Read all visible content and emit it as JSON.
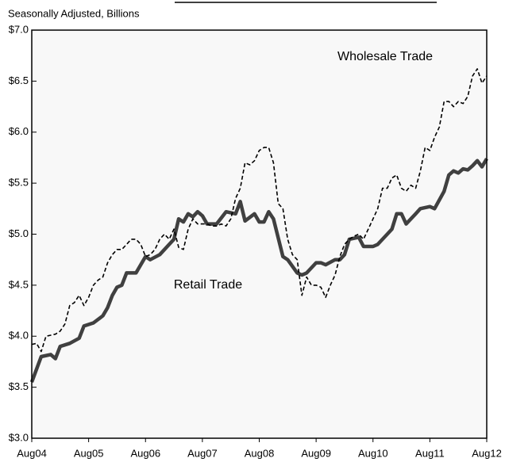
{
  "chart_data": {
    "type": "line",
    "subtitle": "Seasonally Adjusted, Billions",
    "annotations": [
      "Wholesale Trade",
      "Retail Trade"
    ],
    "xlim": [
      0,
      96
    ],
    "xticks": [
      {
        "value": 0,
        "label": "Aug04"
      },
      {
        "value": 12,
        "label": "Aug05"
      },
      {
        "value": 24,
        "label": "Aug06"
      },
      {
        "value": 36,
        "label": "Aug07"
      },
      {
        "value": 48,
        "label": "Aug08"
      },
      {
        "value": 60,
        "label": "Aug09"
      },
      {
        "value": 72,
        "label": "Aug10"
      },
      {
        "value": 84,
        "label": "Aug11"
      },
      {
        "value": 96,
        "label": "Aug12"
      }
    ],
    "ylim": [
      3.0,
      7.0
    ],
    "yticks": [
      {
        "value": 3.0,
        "label": "$3.0"
      },
      {
        "value": 3.5,
        "label": "$3.5"
      },
      {
        "value": 4.0,
        "label": "$4.0"
      },
      {
        "value": 4.5,
        "label": "$4.5"
      },
      {
        "value": 5.0,
        "label": "$5.0"
      },
      {
        "value": 5.5,
        "label": "$5.5"
      },
      {
        "value": 6.0,
        "label": "$6.0"
      },
      {
        "value": 6.5,
        "label": "$6.5"
      },
      {
        "value": 7.0,
        "label": "$7.0"
      }
    ],
    "grid": false,
    "series": [
      {
        "name": "Retail Trade",
        "color": "#404040",
        "style": "solid",
        "x": [
          0,
          2,
          4,
          5,
          6,
          8,
          10,
          11,
          13,
          15,
          16,
          17,
          18,
          19,
          20,
          22,
          24,
          25,
          27,
          29,
          30,
          31,
          32,
          33,
          34,
          35,
          36,
          37,
          39,
          41,
          43,
          44,
          45,
          47,
          48,
          49,
          50,
          51,
          53,
          54,
          56,
          57,
          58,
          60,
          61,
          62,
          64,
          65,
          66,
          67,
          69,
          70,
          72,
          73,
          75,
          76,
          77,
          78,
          79,
          80,
          81,
          82,
          84,
          85,
          87,
          88,
          89,
          90,
          91,
          92,
          93,
          94,
          95,
          96
        ],
        "values": [
          3.55,
          3.8,
          3.82,
          3.78,
          3.9,
          3.93,
          3.98,
          4.1,
          4.13,
          4.2,
          4.28,
          4.4,
          4.48,
          4.5,
          4.62,
          4.62,
          4.78,
          4.75,
          4.8,
          4.9,
          4.95,
          5.15,
          5.12,
          5.2,
          5.17,
          5.22,
          5.18,
          5.1,
          5.1,
          5.22,
          5.2,
          5.32,
          5.13,
          5.2,
          5.12,
          5.12,
          5.22,
          5.15,
          4.78,
          4.75,
          4.62,
          4.6,
          4.62,
          4.72,
          4.72,
          4.7,
          4.75,
          4.75,
          4.8,
          4.95,
          4.97,
          4.88,
          4.88,
          4.9,
          5.0,
          5.05,
          5.2,
          5.2,
          5.1,
          5.15,
          5.2,
          5.25,
          5.27,
          5.25,
          5.42,
          5.58,
          5.62,
          5.6,
          5.64,
          5.63,
          5.67,
          5.72,
          5.66,
          5.74
        ]
      },
      {
        "name": "Wholesale Trade",
        "color": "#000000",
        "style": "dashed",
        "x": [
          0,
          1,
          2,
          3,
          4,
          5,
          6,
          7,
          8,
          9,
          10,
          11,
          12,
          13,
          14,
          15,
          16,
          17,
          18,
          19,
          20,
          21,
          22,
          23,
          24,
          25,
          26,
          27,
          28,
          29,
          30,
          31,
          32,
          33,
          34,
          35,
          36,
          37,
          38,
          39,
          40,
          41,
          42,
          43,
          44,
          45,
          46,
          47,
          48,
          49,
          50,
          51,
          52,
          53,
          54,
          55,
          56,
          57,
          58,
          59,
          60,
          61,
          62,
          63,
          64,
          65,
          66,
          67,
          68,
          69,
          70,
          71,
          72,
          73,
          74,
          75,
          76,
          77,
          78,
          79,
          80,
          81,
          82,
          83,
          84,
          85,
          86,
          87,
          88,
          89,
          90,
          91,
          92,
          93,
          94,
          95,
          96
        ],
        "values": [
          3.92,
          3.93,
          3.85,
          4.0,
          4.01,
          4.02,
          4.05,
          4.12,
          4.3,
          4.33,
          4.4,
          4.3,
          4.38,
          4.5,
          4.55,
          4.58,
          4.72,
          4.8,
          4.85,
          4.85,
          4.9,
          4.95,
          4.95,
          4.9,
          4.78,
          4.8,
          4.85,
          4.95,
          5.0,
          4.95,
          5.05,
          4.87,
          4.85,
          5.05,
          5.15,
          5.1,
          5.1,
          5.1,
          5.08,
          5.08,
          5.1,
          5.08,
          5.15,
          5.35,
          5.45,
          5.7,
          5.68,
          5.72,
          5.82,
          5.85,
          5.85,
          5.7,
          5.3,
          5.25,
          4.95,
          4.8,
          4.75,
          4.4,
          4.58,
          4.5,
          4.5,
          4.48,
          4.38,
          4.5,
          4.6,
          4.78,
          4.9,
          4.95,
          4.98,
          5.0,
          4.95,
          5.05,
          5.15,
          5.25,
          5.45,
          5.45,
          5.55,
          5.58,
          5.45,
          5.42,
          5.48,
          5.45,
          5.62,
          5.85,
          5.82,
          5.95,
          6.05,
          6.3,
          6.3,
          6.25,
          6.3,
          6.28,
          6.35,
          6.55,
          6.62,
          6.48,
          6.55
        ]
      }
    ]
  }
}
